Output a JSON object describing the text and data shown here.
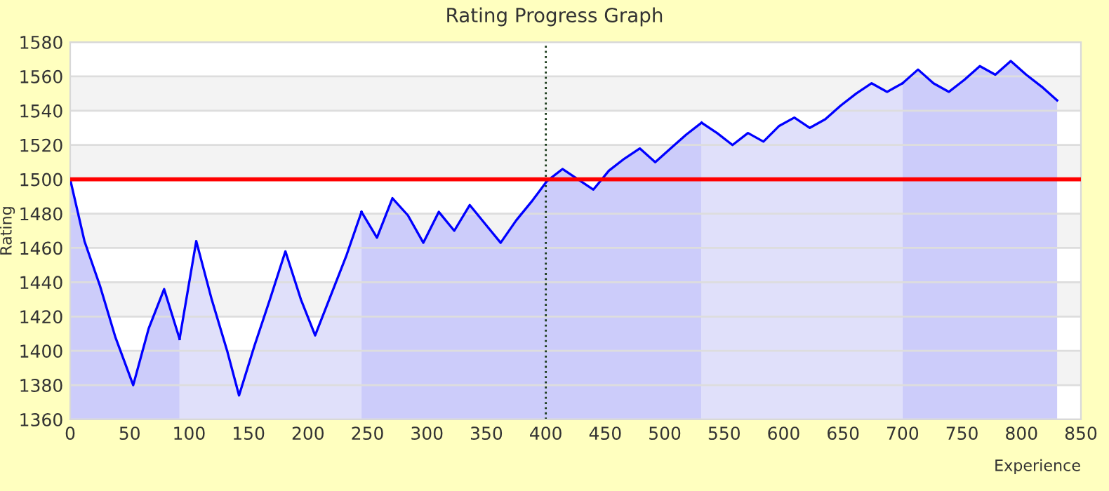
{
  "chart_data": {
    "type": "area",
    "title": "Rating Progress Graph",
    "xlabel": "Experience",
    "ylabel": "Rating",
    "x": [
      0,
      12,
      25,
      38,
      53,
      66,
      79,
      92,
      106,
      119,
      132,
      142,
      155,
      168,
      181,
      194,
      206,
      219,
      232,
      245,
      258,
      271,
      284,
      297,
      310,
      323,
      336,
      349,
      362,
      375,
      388,
      401,
      414,
      427,
      440,
      453,
      466,
      479,
      492,
      505,
      518,
      531,
      544,
      557,
      570,
      583,
      596,
      609,
      622,
      635,
      648,
      661,
      674,
      687,
      700,
      713,
      726,
      739,
      752,
      765,
      778,
      791,
      804,
      817,
      830
    ],
    "series": [
      {
        "color": "#ccccfa",
        "values": [
          1500,
          1464,
          1438,
          1408,
          1380,
          1413,
          1436,
          1407,
          null,
          null,
          null,
          null,
          null,
          null,
          null,
          null,
          null,
          null,
          null,
          1481,
          1466,
          1489,
          1479,
          1463,
          1481,
          1470,
          1485,
          1474,
          1463,
          1476,
          1487,
          1499,
          1506,
          1500,
          1494,
          1505,
          1512,
          1518,
          1510,
          1518,
          1526,
          1533,
          null,
          null,
          null,
          null,
          null,
          null,
          null,
          null,
          null,
          null,
          null,
          null,
          1556,
          1564,
          1556,
          1551,
          1558,
          1566,
          1561,
          1569,
          1561,
          1554,
          1546
        ]
      },
      {
        "color": "#e0e0fa",
        "values": [
          null,
          null,
          null,
          null,
          null,
          null,
          null,
          1407,
          1464,
          1430,
          1400,
          1374,
          1403,
          1430,
          1458,
          1430,
          1409,
          1432,
          1455,
          1481,
          null,
          null,
          null,
          null,
          null,
          null,
          null,
          null,
          null,
          null,
          null,
          null,
          null,
          null,
          null,
          null,
          null,
          null,
          null,
          null,
          null,
          1533,
          1527,
          1520,
          1527,
          1522,
          1531,
          1536,
          1530,
          1535,
          1543,
          1550,
          1556,
          1551,
          1556,
          null,
          null,
          null,
          null,
          null,
          null,
          null,
          null,
          null,
          null
        ]
      }
    ],
    "xlim": [
      0,
      850
    ],
    "ylim": [
      1360,
      1580
    ],
    "xticks": [
      0,
      50,
      100,
      150,
      200,
      250,
      300,
      350,
      400,
      450,
      500,
      550,
      600,
      650,
      700,
      750,
      800,
      850
    ],
    "yticks": [
      1360,
      1380,
      1400,
      1420,
      1440,
      1460,
      1480,
      1500,
      1520,
      1540,
      1560,
      1580
    ],
    "grid": "y",
    "ref_lines": [
      {
        "axis": "y",
        "value": 1500,
        "color": "#ff0000",
        "line_style": "solid"
      },
      {
        "axis": "x",
        "value": 400,
        "color": "#1a3a1a",
        "line_style": "dotted"
      }
    ]
  }
}
